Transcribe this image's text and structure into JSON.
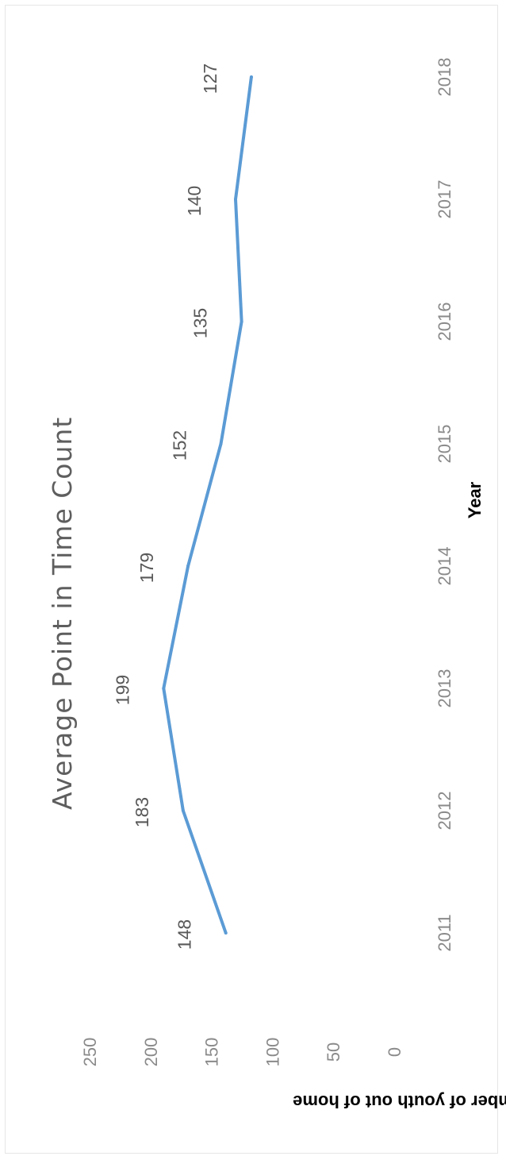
{
  "chart_data": {
    "type": "line",
    "title": "Average Point in Time Count",
    "xlabel": "Year",
    "ylabel": "Average number of youth out of home",
    "x": [
      "2011",
      "2012",
      "2013",
      "2014",
      "2015",
      "2016",
      "2017",
      "2018"
    ],
    "series": [
      {
        "values": [
          148,
          183,
          199,
          179,
          152,
          135,
          140,
          127
        ],
        "color": "#5b9bd5"
      }
    ],
    "data_labels": [
      "148",
      "183",
      "199",
      "179",
      "152",
      "135",
      "140",
      "127"
    ],
    "ylim": [
      0,
      250
    ],
    "yticks": [
      "0",
      "50",
      "100",
      "150",
      "200",
      "250"
    ],
    "grid": false,
    "orientation": "rotated 90 degrees clockwise"
  }
}
